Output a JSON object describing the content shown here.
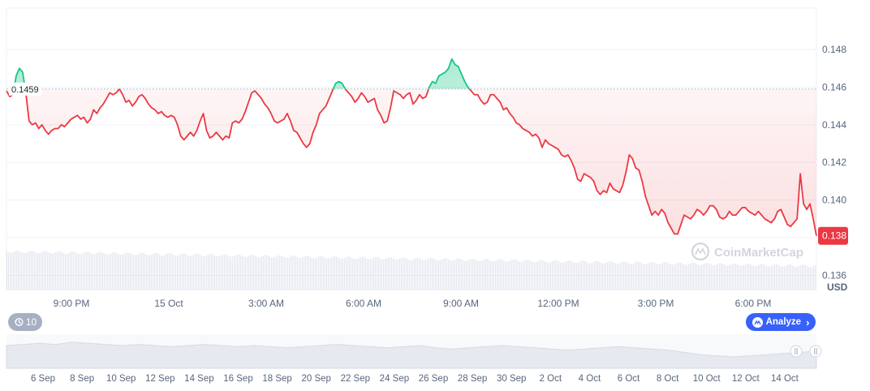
{
  "chart_data": {
    "type": "line",
    "ylim": [
      0.1352,
      0.1502
    ],
    "y_ticks": [
      "0.148",
      "0.146",
      "0.144",
      "0.142",
      "0.140",
      "0.138",
      "0.136"
    ],
    "x_tick_labels": [
      "9:00 PM",
      "15 Oct",
      "3:00 AM",
      "6:00 AM",
      "9:00 AM",
      "12:00 PM",
      "3:00 PM",
      "6:00 PM"
    ],
    "unit_label": "USD",
    "open_price": 0.1459,
    "open_price_label": "0.1459",
    "last_price_label": "0.138",
    "series": [
      {
        "values": [
          0.1458,
          0.1455,
          0.1456,
          0.1466,
          0.147,
          0.1468,
          0.1457,
          0.1442,
          0.144,
          0.1441,
          0.1438,
          0.144,
          0.1437,
          0.1435,
          0.1437,
          0.1438,
          0.1438,
          0.144,
          0.1439,
          0.1441,
          0.1443,
          0.1444,
          0.1445,
          0.1443,
          0.1444,
          0.1441,
          0.1443,
          0.1448,
          0.1446,
          0.1449,
          0.1451,
          0.1454,
          0.1457,
          0.1456,
          0.1457,
          0.1459,
          0.1456,
          0.1452,
          0.1453,
          0.145,
          0.1452,
          0.1455,
          0.1456,
          0.1454,
          0.1451,
          0.1449,
          0.1448,
          0.1446,
          0.1447,
          0.1445,
          0.1444,
          0.1445,
          0.1444,
          0.144,
          0.1434,
          0.1432,
          0.1434,
          0.1436,
          0.1434,
          0.1437,
          0.1442,
          0.1446,
          0.1437,
          0.1433,
          0.1434,
          0.1436,
          0.1434,
          0.1432,
          0.1434,
          0.1433,
          0.1441,
          0.1442,
          0.1441,
          0.1443,
          0.1447,
          0.1452,
          0.1457,
          0.1458,
          0.1456,
          0.1454,
          0.1451,
          0.1449,
          0.1446,
          0.1442,
          0.1441,
          0.1442,
          0.1443,
          0.1446,
          0.1442,
          0.1437,
          0.1436,
          0.1433,
          0.143,
          0.1428,
          0.143,
          0.1436,
          0.144,
          0.1446,
          0.1448,
          0.145,
          0.1454,
          0.1458,
          0.1462,
          0.1463,
          0.1462,
          0.1459,
          0.1457,
          0.1455,
          0.1452,
          0.1454,
          0.1457,
          0.1455,
          0.1452,
          0.1453,
          0.1454,
          0.1448,
          0.1445,
          0.1441,
          0.1442,
          0.1449,
          0.1458,
          0.1457,
          0.1456,
          0.1454,
          0.1456,
          0.1457,
          0.1451,
          0.1453,
          0.1456,
          0.1454,
          0.1455,
          0.146,
          0.1463,
          0.1462,
          0.1466,
          0.1467,
          0.1468,
          0.147,
          0.1475,
          0.1472,
          0.1471,
          0.1467,
          0.1463,
          0.146,
          0.1458,
          0.1456,
          0.1456,
          0.1453,
          0.1451,
          0.1452,
          0.1456,
          0.1456,
          0.1454,
          0.1452,
          0.1448,
          0.1449,
          0.1446,
          0.1444,
          0.1441,
          0.144,
          0.1438,
          0.1437,
          0.1436,
          0.1434,
          0.1435,
          0.1433,
          0.1428,
          0.1432,
          0.143,
          0.1429,
          0.1428,
          0.1427,
          0.1424,
          0.1423,
          0.1424,
          0.1421,
          0.1417,
          0.1411,
          0.141,
          0.1414,
          0.1413,
          0.1412,
          0.141,
          0.1405,
          0.1403,
          0.1405,
          0.1404,
          0.1409,
          0.1406,
          0.1405,
          0.1404,
          0.1408,
          0.1415,
          0.1424,
          0.1422,
          0.1417,
          0.1416,
          0.141,
          0.1402,
          0.1397,
          0.1392,
          0.1394,
          0.1392,
          0.1395,
          0.1393,
          0.1388,
          0.1385,
          0.1382,
          0.1382,
          0.1387,
          0.1392,
          0.1391,
          0.139,
          0.1392,
          0.1395,
          0.1394,
          0.1392,
          0.1394,
          0.1397,
          0.1397,
          0.1395,
          0.1391,
          0.139,
          0.1391,
          0.1394,
          0.1392,
          0.1392,
          0.1394,
          0.1396,
          0.1396,
          0.1394,
          0.1393,
          0.1392,
          0.1394,
          0.1392,
          0.139,
          0.1389,
          0.1388,
          0.139,
          0.1394,
          0.1395,
          0.1391,
          0.1387,
          0.1386,
          0.1388,
          0.139,
          0.1414,
          0.1398,
          0.1395,
          0.1398,
          0.139,
          0.1381
        ]
      }
    ],
    "colors": {
      "down_line": "#ea3943",
      "up_line": "#16c784",
      "down_fill": "#ea3943",
      "up_fill": "#16c784",
      "grid": "#eff2f5",
      "axis_text": "#58667e",
      "label_bg": "#ea3943",
      "volume": "#cfd6e4",
      "navigator_fill": "#e6e9ef"
    },
    "watermark": "CoinMarketCap",
    "navigator": {
      "labels": [
        "6 Sep",
        "8 Sep",
        "10 Sep",
        "12 Sep",
        "14 Sep",
        "16 Sep",
        "18 Sep",
        "20 Sep",
        "22 Sep",
        "24 Sep",
        "26 Sep",
        "28 Sep",
        "30 Sep",
        "2 Oct",
        "4 Oct",
        "6 Oct",
        "8 Oct",
        "10 Oct",
        "12 Oct",
        "14 Oct"
      ],
      "values": [
        0.15,
        0.151,
        0.152,
        0.151,
        0.153,
        0.152,
        0.151,
        0.15,
        0.151,
        0.15,
        0.149,
        0.15,
        0.151,
        0.15,
        0.149,
        0.15,
        0.149,
        0.148,
        0.149,
        0.15,
        0.151,
        0.15,
        0.149,
        0.148,
        0.149,
        0.15,
        0.148,
        0.147,
        0.148,
        0.149,
        0.15,
        0.149,
        0.148,
        0.147,
        0.146,
        0.147,
        0.148,
        0.149,
        0.148,
        0.147,
        0.146,
        0.144,
        0.142,
        0.141,
        0.14,
        0.141,
        0.142,
        0.143,
        0.144,
        0.145
      ]
    }
  },
  "toolbar": {
    "history_label": "10",
    "history_icon": "clock-rewind-icon",
    "analyze_label": "Analyze",
    "analyze_icon": "coinmarketcap-logo-icon",
    "analyze_chevron": "chevron-right-icon"
  }
}
